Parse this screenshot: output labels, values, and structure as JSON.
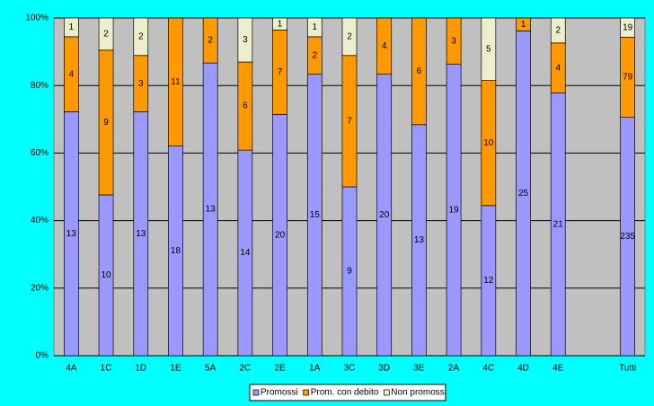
{
  "chart_data": {
    "type": "bar",
    "stack": "percent",
    "categories": [
      "4A",
      "1C",
      "1D",
      "1E",
      "5A",
      "2C",
      "2E",
      "1A",
      "3C",
      "3D",
      "3E",
      "2A",
      "4C",
      "4D",
      "4E",
      null,
      "Tutti"
    ],
    "series": [
      {
        "name": "Promossi",
        "color": "#9999ff",
        "values": [
          13,
          10,
          13,
          18,
          13,
          14,
          20,
          15,
          9,
          20,
          13,
          19,
          12,
          25,
          21,
          null,
          235
        ]
      },
      {
        "name": "Prom. con debito",
        "color": "#ff9900",
        "values": [
          4,
          9,
          3,
          11,
          2,
          6,
          7,
          2,
          7,
          4,
          6,
          3,
          10,
          1,
          4,
          null,
          79
        ]
      },
      {
        "name": "Non promossi",
        "color": "#eeeecc",
        "values": [
          1,
          2,
          2,
          0,
          0,
          3,
          1,
          1,
          2,
          0,
          0,
          0,
          5,
          0,
          2,
          null,
          19
        ]
      }
    ],
    "ylim": [
      0,
      100
    ],
    "yticks": [
      {
        "value": 0,
        "label": "0%"
      },
      {
        "value": 20,
        "label": "20%"
      },
      {
        "value": 40,
        "label": "40%"
      },
      {
        "value": 60,
        "label": "60%"
      },
      {
        "value": 80,
        "label": "80%"
      },
      {
        "value": 100,
        "label": "100%"
      }
    ],
    "grid": true,
    "legend": "bottom"
  }
}
